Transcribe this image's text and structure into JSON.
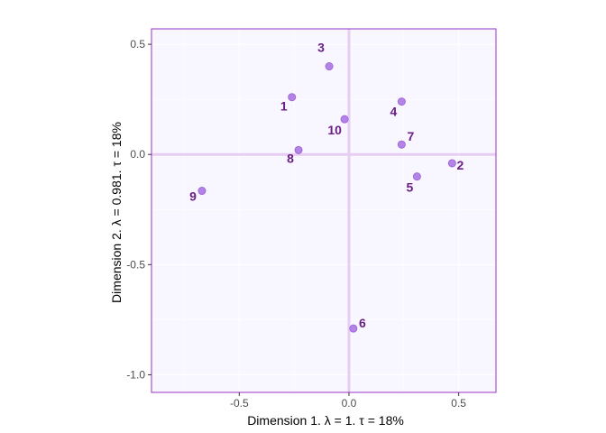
{
  "chart_data": {
    "type": "scatter",
    "title": "",
    "xlabel": "Dimension 1.   λ = 1.  τ = 18%",
    "ylabel": "Dimension 2.   λ = 0.981.  τ = 18%",
    "xlim": [
      -0.9,
      0.67
    ],
    "ylim": [
      -1.08,
      0.57
    ],
    "x_ticks": [
      -0.5,
      0.0,
      0.5
    ],
    "x_tick_labels": [
      "-0.5",
      "0.0",
      "0.5"
    ],
    "y_ticks": [
      0.5,
      0.0,
      -0.5,
      -1.0
    ],
    "y_tick_labels": [
      "0.5",
      "0.0",
      "-0.5",
      "-1.0"
    ],
    "grid": true,
    "reference_lines": {
      "x": 0,
      "y": 0
    },
    "points": [
      {
        "label": "1",
        "x": -0.26,
        "y": 0.26
      },
      {
        "label": "2",
        "x": 0.47,
        "y": -0.04
      },
      {
        "label": "3",
        "x": -0.09,
        "y": 0.4
      },
      {
        "label": "4",
        "x": 0.24,
        "y": 0.24
      },
      {
        "label": "5",
        "x": 0.31,
        "y": -0.1
      },
      {
        "label": "6",
        "x": 0.02,
        "y": -0.79
      },
      {
        "label": "7",
        "x": 0.24,
        "y": 0.045
      },
      {
        "label": "8",
        "x": -0.23,
        "y": 0.02
      },
      {
        "label": "9",
        "x": -0.67,
        "y": -0.165
      },
      {
        "label": "10",
        "x": -0.02,
        "y": 0.16
      }
    ]
  },
  "colors": {
    "panel_bg": "#f8f6ff",
    "panel_border": "#9b30c8",
    "grid_line": "#ffffff",
    "reference_line": "#e8cdf2",
    "point_fill": "#b483e8",
    "point_stroke": "#9f69d6",
    "label_text": "#6a1e86"
  }
}
